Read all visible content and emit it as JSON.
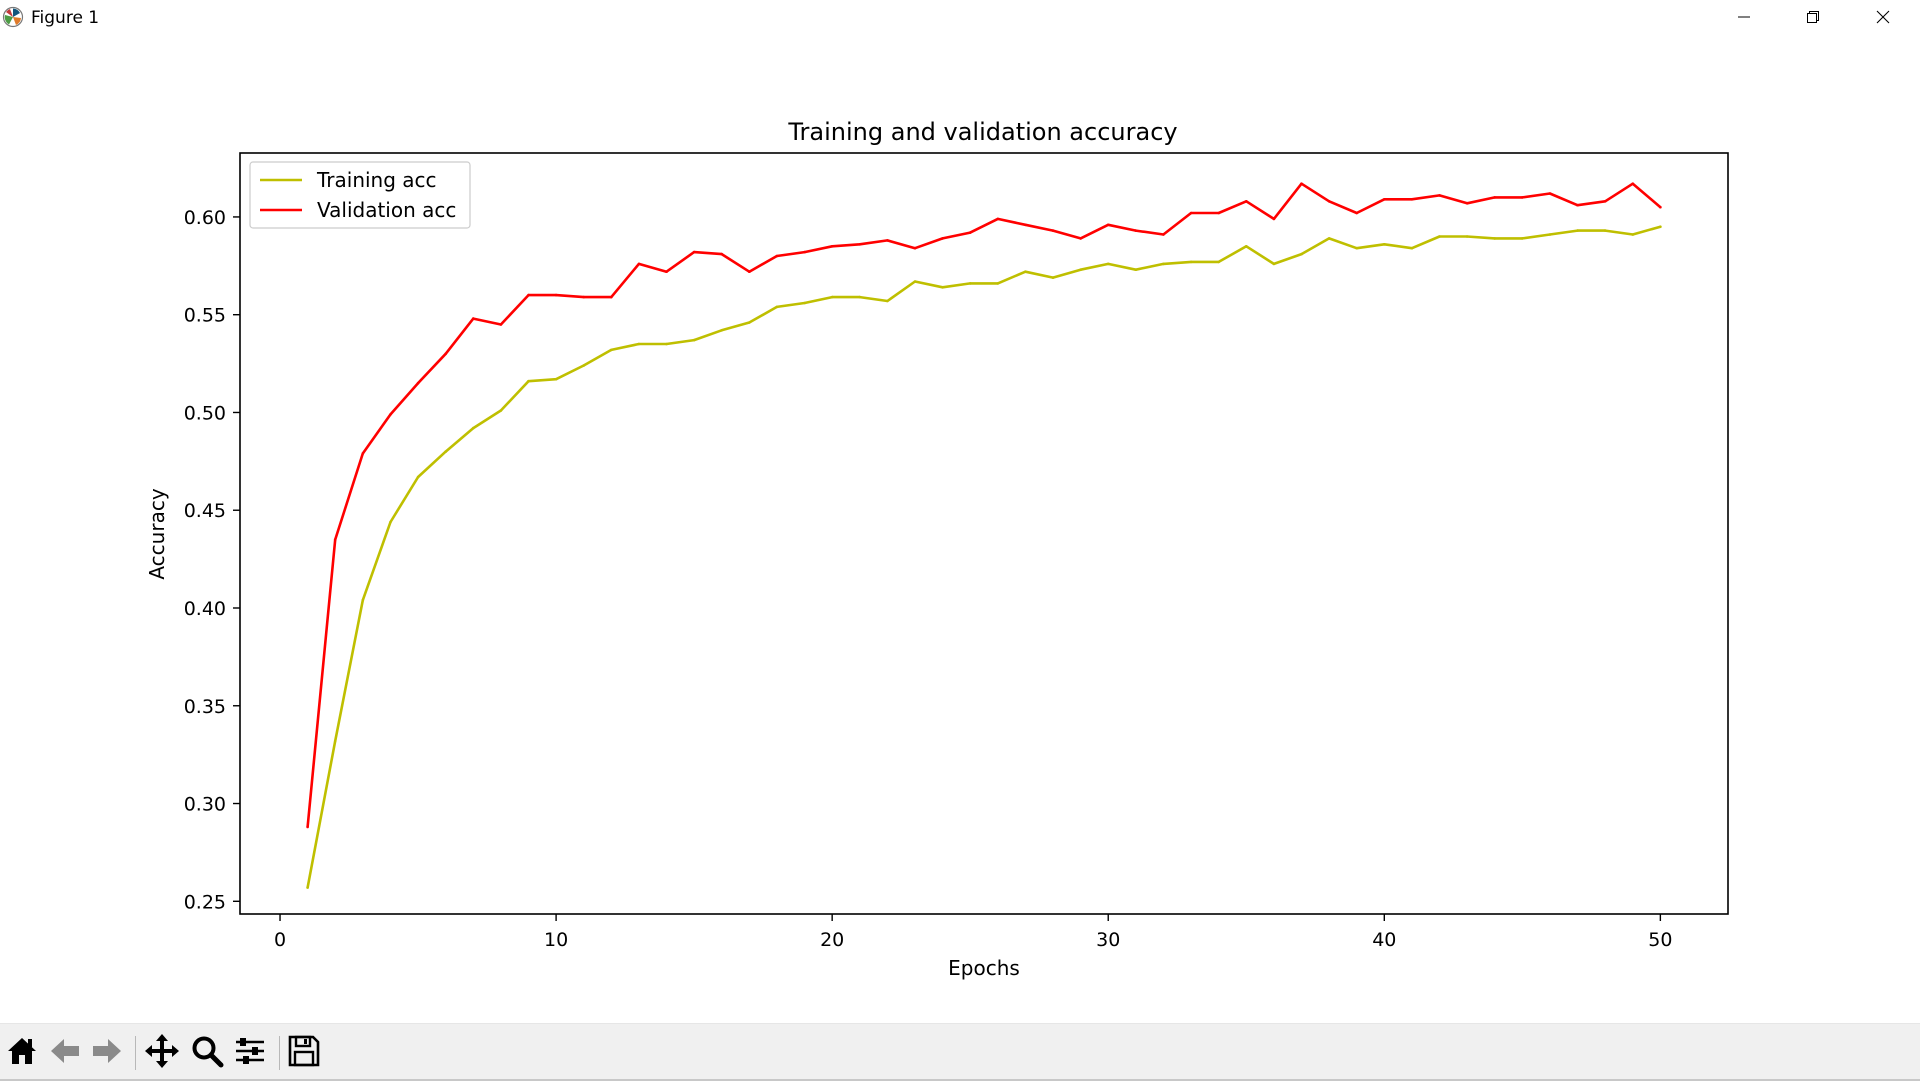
{
  "window": {
    "title": "Figure 1",
    "controls": [
      "minimize",
      "restore",
      "close"
    ]
  },
  "toolbar": {
    "buttons": [
      "home-icon",
      "back-arrow-icon",
      "forward-arrow-icon",
      "pan-icon",
      "zoom-icon",
      "configure-subplots-icon",
      "save-icon"
    ]
  },
  "colors": {
    "training": "#bfbf00",
    "validation": "#ff0000"
  },
  "chart_data": {
    "type": "line",
    "title": "Training and validation accuracy",
    "xlabel": "Epochs",
    "ylabel": "Accuracy",
    "xlim": [
      -1.45,
      52.45
    ],
    "ylim": [
      0.2435,
      0.6327
    ],
    "xticks": [
      0,
      10,
      20,
      30,
      40,
      50
    ],
    "xtick_labels": [
      "0",
      "10",
      "20",
      "30",
      "40",
      "50"
    ],
    "yticks": [
      0.25,
      0.3,
      0.35,
      0.4,
      0.45,
      0.5,
      0.55,
      0.6
    ],
    "ytick_labels": [
      "0.25",
      "0.30",
      "0.35",
      "0.40",
      "0.45",
      "0.50",
      "0.55",
      "0.60"
    ],
    "grid": false,
    "legend_position": "upper-left",
    "x": [
      1,
      2,
      3,
      4,
      5,
      6,
      7,
      8,
      9,
      10,
      11,
      12,
      13,
      14,
      15,
      16,
      17,
      18,
      19,
      20,
      21,
      22,
      23,
      24,
      25,
      26,
      27,
      28,
      29,
      30,
      31,
      32,
      33,
      34,
      35,
      36,
      37,
      38,
      39,
      40,
      41,
      42,
      43,
      44,
      45,
      46,
      47,
      48,
      49,
      50
    ],
    "series": [
      {
        "name": "Training acc",
        "color": "#bfbf00",
        "values": [
          0.257,
          0.332,
          0.404,
          0.444,
          0.467,
          0.48,
          0.492,
          0.501,
          0.516,
          0.517,
          0.524,
          0.532,
          0.535,
          0.535,
          0.537,
          0.542,
          0.546,
          0.554,
          0.556,
          0.559,
          0.559,
          0.557,
          0.567,
          0.564,
          0.566,
          0.566,
          0.572,
          0.569,
          0.573,
          0.576,
          0.573,
          0.576,
          0.577,
          0.577,
          0.585,
          0.576,
          0.581,
          0.589,
          0.584,
          0.586,
          0.584,
          0.59,
          0.59,
          0.589,
          0.589,
          0.591,
          0.593,
          0.593,
          0.591,
          0.595
        ]
      },
      {
        "name": "Validation acc",
        "color": "#ff0000",
        "values": [
          0.288,
          0.435,
          0.479,
          0.499,
          0.515,
          0.53,
          0.548,
          0.545,
          0.56,
          0.56,
          0.559,
          0.559,
          0.576,
          0.572,
          0.582,
          0.581,
          0.572,
          0.58,
          0.582,
          0.585,
          0.586,
          0.588,
          0.584,
          0.589,
          0.592,
          0.599,
          0.596,
          0.593,
          0.589,
          0.596,
          0.593,
          0.591,
          0.602,
          0.602,
          0.608,
          0.599,
          0.617,
          0.608,
          0.602,
          0.609,
          0.609,
          0.611,
          0.607,
          0.61,
          0.61,
          0.612,
          0.606,
          0.608,
          0.617,
          0.605
        ]
      }
    ]
  }
}
